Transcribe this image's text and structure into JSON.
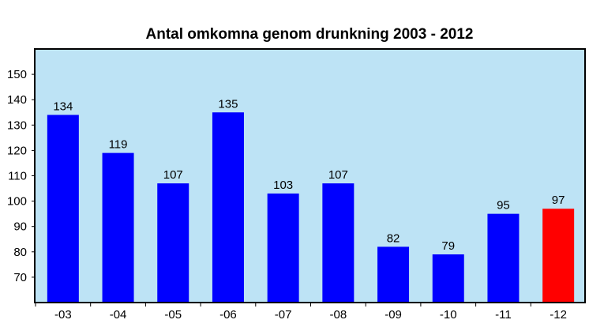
{
  "chart_data": {
    "type": "bar",
    "title": "Antal omkomna genom drunkning 2003 - 2012",
    "xlabel": "",
    "ylabel": "",
    "categories": [
      "-03",
      "-04",
      "-05",
      "-06",
      "-07",
      "-08",
      "-09",
      "-10",
      "-11",
      "-12"
    ],
    "values": [
      134,
      119,
      107,
      135,
      103,
      107,
      82,
      79,
      95,
      97
    ],
    "yticks": [
      70,
      80,
      90,
      100,
      110,
      120,
      130,
      140,
      150
    ],
    "ylim": [
      60,
      160
    ],
    "grid": false,
    "legend": "none",
    "colors": {
      "plot_background": "#bde3f5",
      "bar": "#0000ff",
      "highlight_bar": "#ff0000",
      "axis": "#000000"
    },
    "highlight_category": "-12"
  }
}
